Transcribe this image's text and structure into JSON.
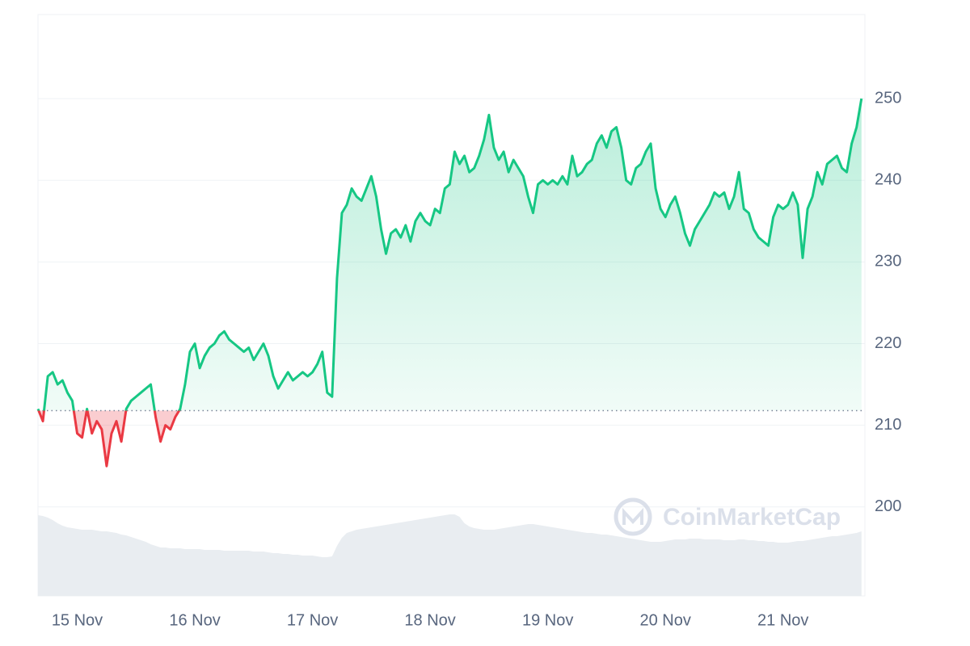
{
  "chart_data": {
    "type": "line",
    "watermark": "CoinMarketCap",
    "x": [
      -8,
      -7,
      -6,
      -5,
      -4,
      -3,
      -2,
      -1,
      0,
      1,
      2,
      3,
      4,
      5,
      6,
      7,
      8,
      9,
      10,
      11,
      12,
      13,
      14,
      15,
      16,
      17,
      18,
      19,
      20,
      21,
      22,
      23,
      24,
      25,
      26,
      27,
      28,
      29,
      30,
      31,
      32,
      33,
      34,
      35,
      36,
      37,
      38,
      39,
      40,
      41,
      42,
      43,
      44,
      45,
      46,
      47,
      48,
      49,
      50,
      51,
      52,
      53,
      54,
      55,
      56,
      57,
      58,
      59,
      60,
      61,
      62,
      63,
      64,
      65,
      66,
      67,
      68,
      69,
      70,
      71,
      72,
      73,
      74,
      75,
      76,
      77,
      78,
      79,
      80,
      81,
      82,
      83,
      84,
      85,
      86,
      87,
      88,
      89,
      90,
      91,
      92,
      93,
      94,
      95,
      96,
      97,
      98,
      99,
      100,
      101,
      102,
      103,
      104,
      105,
      106,
      107,
      108,
      109,
      110,
      111,
      112,
      113,
      114,
      115,
      116,
      117,
      118,
      119,
      120,
      121,
      122,
      123,
      124,
      125,
      126,
      127,
      128,
      129,
      130,
      131,
      132,
      133,
      134,
      135,
      136,
      137,
      138,
      139,
      140,
      141,
      142,
      143,
      144,
      145,
      146,
      147,
      148,
      149,
      150,
      151,
      152,
      153,
      154,
      155,
      156,
      157,
      158,
      159,
      160
    ],
    "values": [
      212,
      210.5,
      216,
      216.5,
      215,
      215.5,
      214,
      213,
      209,
      208.5,
      212,
      209,
      210.5,
      209.5,
      205,
      209,
      210.5,
      208,
      212,
      213,
      213.5,
      214,
      214.5,
      215,
      211,
      208,
      210,
      209.5,
      211,
      212,
      215,
      219,
      220,
      217,
      218.5,
      219.5,
      220,
      221,
      221.5,
      220.5,
      220,
      219.5,
      219,
      219.5,
      218,
      219,
      220,
      218.5,
      216,
      214.5,
      215.5,
      216.5,
      215.5,
      216,
      216.5,
      216,
      216.5,
      217.5,
      219,
      214,
      213.5,
      228,
      236,
      237,
      239,
      238,
      237.5,
      239,
      240.5,
      238,
      234,
      231,
      233.5,
      234,
      233,
      234.5,
      232.5,
      235,
      236,
      235,
      234.5,
      236.5,
      236,
      239,
      239.5,
      243.5,
      242,
      243,
      241,
      241.5,
      243,
      245,
      248,
      244,
      242.5,
      243.5,
      241,
      242.5,
      241.5,
      240.5,
      238,
      236,
      239.5,
      240,
      239.5,
      240,
      239.5,
      240.5,
      239.5,
      243,
      240.5,
      241,
      242,
      242.5,
      244.5,
      245.5,
      244,
      246,
      246.5,
      244,
      240,
      239.5,
      241.5,
      242,
      243.5,
      244.5,
      239,
      236.5,
      235.5,
      237,
      238,
      236,
      233.5,
      232,
      234,
      235,
      236,
      237,
      238.5,
      238,
      238.5,
      236.5,
      238,
      241,
      236.5,
      236,
      234,
      233,
      232.5,
      232,
      235.5,
      237,
      236.5,
      237,
      238.5,
      237,
      230.5,
      236.5,
      238,
      241,
      239.5,
      242,
      242.5,
      243,
      241.5,
      241,
      244.5,
      246.5,
      250
    ],
    "volume": [
      100,
      99,
      97,
      94,
      90,
      87,
      85,
      84,
      83,
      82,
      82,
      82,
      81,
      80,
      80,
      79,
      78,
      76,
      75,
      73,
      71,
      69,
      67,
      64,
      62,
      60,
      60,
      59,
      59,
      59,
      58,
      58,
      58,
      58,
      57,
      57,
      57,
      57,
      56,
      56,
      56,
      56,
      56,
      56,
      55,
      55,
      55,
      54,
      53,
      53,
      52,
      52,
      51,
      51,
      50,
      50,
      50,
      49,
      48,
      48,
      49,
      62,
      72,
      78,
      80,
      82,
      83,
      84,
      85,
      86,
      87,
      88,
      89,
      90,
      91,
      92,
      93,
      94,
      95,
      96,
      97,
      98,
      99,
      100,
      101,
      101,
      98,
      90,
      86,
      84,
      83,
      82,
      82,
      82,
      83,
      84,
      85,
      86,
      87,
      88,
      89,
      89,
      88,
      87,
      86,
      85,
      84,
      83,
      82,
      81,
      80,
      79,
      78,
      78,
      77,
      76,
      76,
      75,
      74,
      73,
      72,
      71,
      70,
      69,
      68,
      67,
      67,
      67,
      68,
      69,
      70,
      70,
      70,
      71,
      71,
      71,
      70,
      70,
      70,
      70,
      69,
      69,
      69,
      70,
      70,
      69,
      69,
      68,
      68,
      67,
      67,
      66,
      66,
      66,
      67,
      68,
      68,
      69,
      70,
      71,
      72,
      73,
      74,
      74,
      75,
      76,
      77,
      78,
      80
    ],
    "baseline": 211.8,
    "up_color": "#16c784",
    "down_color": "#ea3943",
    "volume_color": "#e9edf1",
    "xlim": [
      -8,
      160.7
    ],
    "xticks": [
      {
        "value": 0,
        "label": "15 Nov"
      },
      {
        "value": 24,
        "label": "16 Nov"
      },
      {
        "value": 48,
        "label": "17 Nov"
      },
      {
        "value": 72,
        "label": "18 Nov"
      },
      {
        "value": 96,
        "label": "19 Nov"
      },
      {
        "value": 120,
        "label": "20 Nov"
      },
      {
        "value": 144,
        "label": "21 Nov"
      }
    ],
    "ylim": [
      189.1,
      260.3
    ],
    "yticks": [
      200,
      210,
      220,
      230,
      240,
      250
    ],
    "grid": true
  }
}
